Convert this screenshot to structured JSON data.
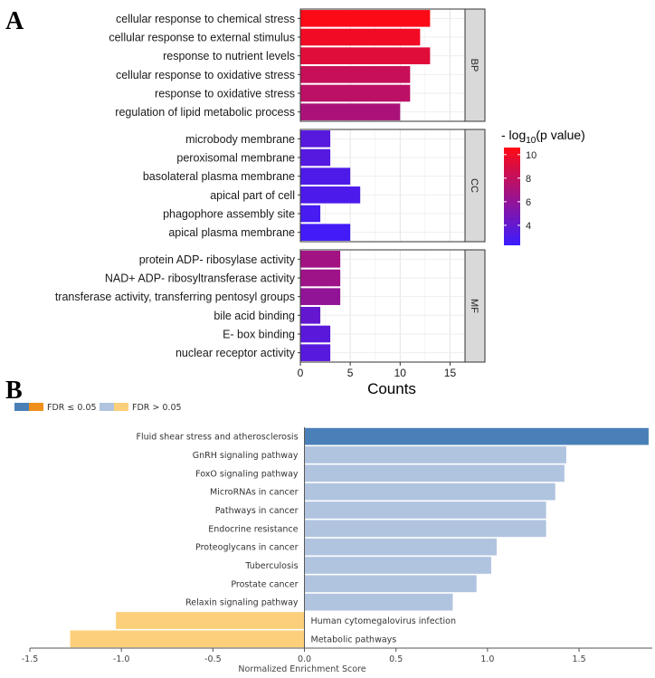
{
  "panel_a_letter": "A",
  "panel_b_letter": "B",
  "chart_data": [
    {
      "type": "bar",
      "orientation": "horizontal",
      "panel": "A",
      "xlabel": "Counts",
      "xlim": [
        0,
        16.5
      ],
      "x_ticks": [
        0,
        5,
        10,
        15
      ],
      "grid": true,
      "legend": {
        "title_prefix": "- log",
        "title_sub": "10",
        "title_suffix": "(p value)",
        "placement": "right",
        "ticks": [
          4,
          6,
          8,
          10
        ],
        "range": [
          2.3,
          10.6
        ],
        "color_low": "#3b1cff",
        "color_high": "#ff0a14"
      },
      "facets": [
        {
          "name": "BP",
          "categories": [
            "cellular response to chemical stress",
            "cellular response to external stimulus",
            "response to nutrient levels",
            "cellular response to oxidative stress",
            "response to oxidative stress",
            "regulation of lipid metabolic process"
          ],
          "counts": [
            13,
            12,
            13,
            11,
            11,
            10
          ],
          "neg_log10_p": [
            10.5,
            10.0,
            9.3,
            8.2,
            7.7,
            7.0
          ]
        },
        {
          "name": "CC",
          "categories": [
            "microbody membrane",
            "peroxisomal membrane",
            "basolateral plasma membrane",
            "apical part of cell",
            "phagophore assembly site",
            "apical plasma membrane"
          ],
          "counts": [
            3,
            3,
            5,
            6,
            2,
            5
          ],
          "neg_log10_p": [
            3.5,
            3.4,
            3.1,
            3.0,
            2.8,
            2.6
          ]
        },
        {
          "name": "MF",
          "categories": [
            "protein ADP- ribosylase activity",
            "NAD+ ADP- ribosyltransferase activity",
            "transferase activity, transferring pentosyl groups",
            "bile acid binding",
            "E- box binding",
            "nuclear receptor activity"
          ],
          "counts": [
            4,
            4,
            4,
            2,
            3,
            3
          ],
          "neg_log10_p": [
            6.7,
            6.5,
            6.0,
            4.0,
            3.6,
            3.5
          ]
        }
      ]
    },
    {
      "type": "bar",
      "orientation": "horizontal",
      "panel": "B",
      "xlabel": "Normalized Enrichment Score",
      "xlim": [
        -1.5,
        1.9
      ],
      "x_ticks": [
        -1.5,
        -1.0,
        -0.5,
        0.0,
        0.5,
        1.0,
        1.5
      ],
      "x_tick_labels": [
        "-1.5",
        "-1.0",
        "-0.5",
        "0.0",
        "0.5",
        "1.0",
        "1.5"
      ],
      "legend": {
        "placement": "top-left",
        "items": [
          {
            "label": "FDR ≤ 0.05",
            "colors": [
              "#4a80b8",
              "#f0901c"
            ]
          },
          {
            "label": "FDR > 0.05",
            "colors": [
              "#b0c4e0",
              "#fcd07a"
            ]
          }
        ]
      },
      "categories": [
        "Fluid shear stress and atherosclerosis",
        "GnRH signaling pathway",
        "FoxO signaling pathway",
        "MicroRNAs in cancer",
        "Pathways in cancer",
        "Endocrine resistance",
        "Proteoglycans in cancer",
        "Tuberculosis",
        "Prostate cancer",
        "Relaxin signaling pathway",
        "Human cytomegalovirus infection",
        "Metabolic pathways"
      ],
      "values": [
        1.88,
        1.43,
        1.42,
        1.37,
        1.32,
        1.32,
        1.05,
        1.02,
        0.94,
        0.81,
        -1.03,
        -1.28
      ],
      "significant": [
        true,
        false,
        false,
        false,
        false,
        false,
        false,
        false,
        false,
        false,
        false,
        false
      ],
      "colors": {
        "pos_sig": "#4a80b8",
        "pos_nonsig": "#b0c4e0",
        "neg_sig": "#f0901c",
        "neg_nonsig": "#fcd07a"
      }
    }
  ]
}
